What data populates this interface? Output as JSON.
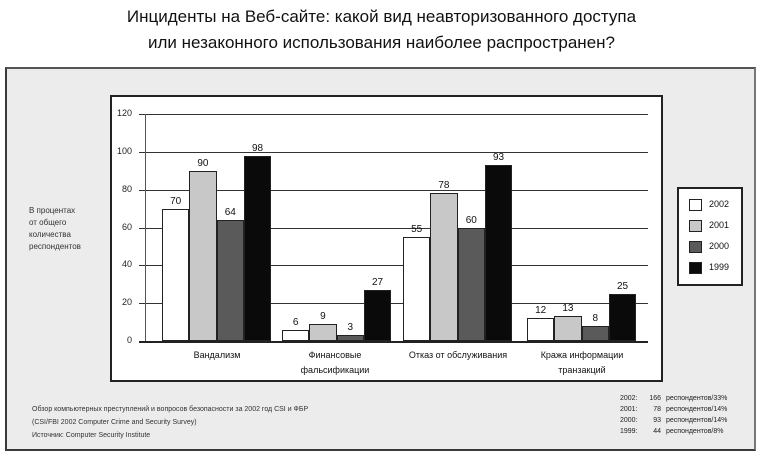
{
  "title": {
    "line1": "Инциденты на Веб-сайте: какой вид неавторизованного доступа",
    "line2": "или незаконного использования наиболее распространен?"
  },
  "y_axis": {
    "label_lines": [
      "В процентах",
      "от общего",
      "количества",
      "респондентов"
    ],
    "ticks": [
      "120",
      "100",
      "80",
      "60",
      "40",
      "20",
      "0"
    ]
  },
  "legend": {
    "items": [
      {
        "label": "2002",
        "color": "#ffffff"
      },
      {
        "label": "2001",
        "color": "#c8c8c8"
      },
      {
        "label": "2000",
        "color": "#5a5a5a"
      },
      {
        "label": "1999",
        "color": "#0a0a0a"
      }
    ]
  },
  "categories": [
    {
      "line1": "Вандализм",
      "line2": ""
    },
    {
      "line1": "Финансовые",
      "line2": "фальсификации"
    },
    {
      "line1": "Отказ от обслуживания",
      "line2": ""
    },
    {
      "line1": "Кража информации",
      "line2": "транзакций"
    }
  ],
  "bar_values": [
    [
      "70",
      "90",
      "64",
      "98"
    ],
    [
      "6",
      "9",
      "3",
      "27"
    ],
    [
      "55",
      "78",
      "60",
      "93"
    ],
    [
      "12",
      "13",
      "8",
      "25"
    ]
  ],
  "footnote": {
    "line1": "Обзор компьютерных преступлений и вопросов безопасности за 2002 год CSI и ФБР",
    "line2": "(CSI/FBI 2002 Computer Crime and Security Survey)",
    "line3": "Источник: Computer Security Institute"
  },
  "respondents": [
    {
      "year": "2002:",
      "count": "166",
      "text": "респондентов/33%"
    },
    {
      "year": "2001:",
      "count": "78",
      "text": "респондентов/14%"
    },
    {
      "year": "2000:",
      "count": "93",
      "text": "респондентов/14%"
    },
    {
      "year": "1999:",
      "count": "44",
      "text": "респондентов/8%"
    }
  ],
  "chart_data": {
    "type": "bar",
    "title": "Инциденты на Веб-сайте: какой вид неавторизованного доступа или незаконного использования наиболее распространен?",
    "xlabel": "",
    "ylabel": "В процентах от общего количества респондентов",
    "ylim": [
      0,
      120
    ],
    "yticks": [
      0,
      20,
      40,
      60,
      80,
      100,
      120
    ],
    "grid": true,
    "legend_position": "right",
    "categories": [
      "Вандализм",
      "Финансовые фальсификации",
      "Отказ от обслуживания",
      "Кража информации транзакций"
    ],
    "series": [
      {
        "name": "2002",
        "values": [
          70,
          6,
          55,
          12
        ]
      },
      {
        "name": "2001",
        "values": [
          90,
          9,
          78,
          13
        ]
      },
      {
        "name": "2000",
        "values": [
          64,
          3,
          60,
          8
        ]
      },
      {
        "name": "1999",
        "values": [
          98,
          27,
          93,
          25
        ]
      }
    ],
    "annotations": [
      "Обзор компьютерных преступлений и вопросов безопасности за 2002 год CSI и ФБР",
      "(CSI/FBI 2002 Computer Crime and Security Survey)",
      "Источник: Computer Security Institute",
      "2002: 166 респондентов/33%",
      "2001: 78 респондентов/14%",
      "2000: 93 респондентов/14%",
      "1999: 44 респондентов/8%"
    ]
  }
}
